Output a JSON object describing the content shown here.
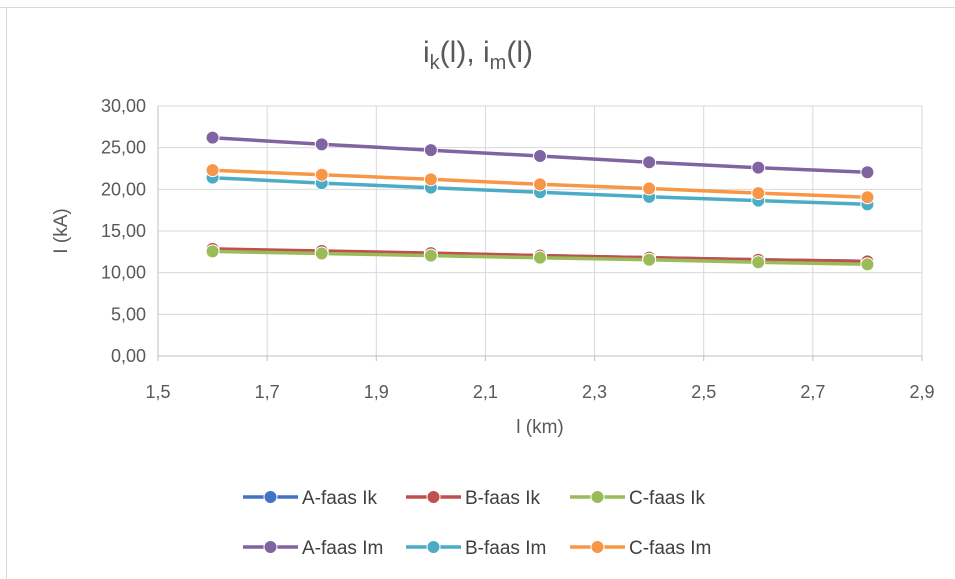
{
  "chart_data": {
    "type": "line",
    "title": "ik(l), im(l)",
    "title_parts": {
      "a": "i",
      "a_sub": "k",
      "b": "(l), i",
      "b_sub": "m",
      "c": "(l)"
    },
    "xlabel": "l (km)",
    "ylabel": "I (kA)",
    "xlim": [
      1.5,
      2.9
    ],
    "ylim": [
      0,
      30
    ],
    "x_ticks": [
      "1,5",
      "1,7",
      "1,9",
      "2,1",
      "2,3",
      "2,5",
      "2,7",
      "2,9"
    ],
    "y_ticks": [
      "0,00",
      "5,00",
      "10,00",
      "15,00",
      "20,00",
      "25,00",
      "30,00"
    ],
    "grid": {
      "vertical": true,
      "horizontal": true
    },
    "legend_position": "bottom",
    "x": [
      1.6,
      1.8,
      2.0,
      2.2,
      2.4,
      2.6,
      2.8
    ],
    "series": [
      {
        "name": "A-faas Ik",
        "color": "#4472c4",
        "values": [
          12.8,
          12.55,
          12.3,
          12.05,
          11.8,
          11.55,
          11.35
        ]
      },
      {
        "name": "B-faas Ik",
        "color": "#c0504d",
        "values": [
          12.85,
          12.6,
          12.35,
          12.05,
          11.8,
          11.55,
          11.35
        ]
      },
      {
        "name": "C-faas Ik",
        "color": "#9bbb59",
        "values": [
          12.55,
          12.3,
          12.05,
          11.8,
          11.55,
          11.25,
          11.0
        ]
      },
      {
        "name": "A-faas Im",
        "color": "#8064a2",
        "values": [
          26.2,
          25.4,
          24.7,
          24.0,
          23.25,
          22.6,
          22.05
        ]
      },
      {
        "name": "B-faas Im",
        "color": "#4bacc6",
        "values": [
          21.4,
          20.75,
          20.2,
          19.65,
          19.1,
          18.65,
          18.2
        ]
      },
      {
        "name": "C-faas Im",
        "color": "#f79646",
        "values": [
          22.3,
          21.75,
          21.2,
          20.6,
          20.1,
          19.55,
          19.05
        ]
      }
    ]
  }
}
